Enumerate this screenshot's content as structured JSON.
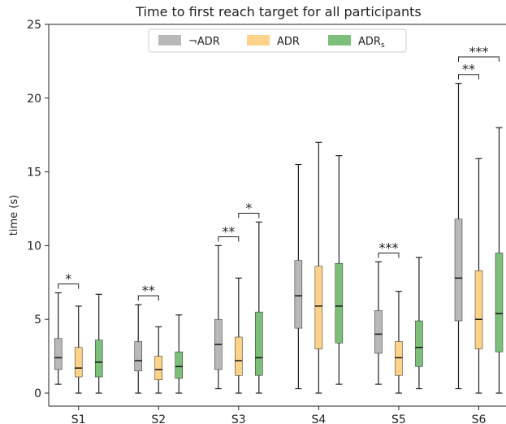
{
  "chart_data": {
    "type": "box",
    "title": "Time to first reach target for all participants",
    "xlabel": "",
    "ylabel": "time (s)",
    "ylim": [
      0,
      25
    ],
    "yticks": [
      0,
      5,
      10,
      15,
      20,
      25
    ],
    "grid": false,
    "legend_position": "top-center",
    "categories": [
      "S1",
      "S2",
      "S3",
      "S4",
      "S5",
      "S6"
    ],
    "series": [
      {
        "name": "¬ADR",
        "color": "#b8b8b8",
        "boxes": [
          {
            "min": 0.6,
            "q1": 1.6,
            "median": 2.4,
            "q3": 3.7,
            "max": 6.8
          },
          {
            "min": 0.0,
            "q1": 1.5,
            "median": 2.2,
            "q3": 3.5,
            "max": 6.0
          },
          {
            "min": 0.3,
            "q1": 1.6,
            "median": 3.3,
            "q3": 5.0,
            "max": 10.0
          },
          {
            "min": 0.3,
            "q1": 4.4,
            "median": 6.6,
            "q3": 9.0,
            "max": 15.5
          },
          {
            "min": 0.6,
            "q1": 2.7,
            "median": 4.0,
            "q3": 5.6,
            "max": 8.9
          },
          {
            "min": 0.3,
            "q1": 4.9,
            "median": 7.8,
            "q3": 11.8,
            "max": 21.0
          }
        ]
      },
      {
        "name": "ADR",
        "color": "#fdd38a",
        "boxes": [
          {
            "min": 0.0,
            "q1": 1.1,
            "median": 1.7,
            "q3": 3.1,
            "max": 5.9
          },
          {
            "min": 0.0,
            "q1": 0.9,
            "median": 1.6,
            "q3": 2.5,
            "max": 4.5
          },
          {
            "min": 0.0,
            "q1": 1.2,
            "median": 2.2,
            "q3": 3.8,
            "max": 7.8
          },
          {
            "min": 0.0,
            "q1": 3.0,
            "median": 5.9,
            "q3": 8.6,
            "max": 17.0
          },
          {
            "min": 0.0,
            "q1": 1.2,
            "median": 2.4,
            "q3": 3.5,
            "max": 6.9
          },
          {
            "min": 0.0,
            "q1": 3.0,
            "median": 5.0,
            "q3": 8.3,
            "max": 15.9
          }
        ]
      },
      {
        "name": "ADR_s",
        "display_name": "ADR",
        "display_subscript": "s",
        "color": "#7cbf7a",
        "boxes": [
          {
            "min": 0.0,
            "q1": 1.1,
            "median": 2.1,
            "q3": 3.6,
            "max": 6.7
          },
          {
            "min": 0.0,
            "q1": 1.0,
            "median": 1.8,
            "q3": 2.8,
            "max": 5.3
          },
          {
            "min": 0.0,
            "q1": 1.2,
            "median": 2.4,
            "q3": 5.5,
            "max": 11.6
          },
          {
            "min": 0.6,
            "q1": 3.4,
            "median": 5.9,
            "q3": 8.8,
            "max": 16.1
          },
          {
            "min": 0.3,
            "q1": 1.8,
            "median": 3.1,
            "q3": 4.9,
            "max": 9.2
          },
          {
            "min": 0.0,
            "q1": 2.8,
            "median": 5.4,
            "q3": 9.5,
            "max": 18.0
          }
        ]
      }
    ],
    "annotations": [
      {
        "category": "S1",
        "from": 0,
        "to": 1,
        "label": "*",
        "y": 7.4,
        "tier": 1
      },
      {
        "category": "S2",
        "from": 0,
        "to": 1,
        "label": "**",
        "y": 6.6,
        "tier": 1
      },
      {
        "category": "S3",
        "from": 0,
        "to": 1,
        "label": "**",
        "y": 10.6,
        "tier": 1
      },
      {
        "category": "S3",
        "from": 1,
        "to": 2,
        "label": "*",
        "y": 12.2,
        "tier": 1
      },
      {
        "category": "S5",
        "from": 0,
        "to": 1,
        "label": "***",
        "y": 9.5,
        "tier": 1
      },
      {
        "category": "S6",
        "from": 0,
        "to": 1,
        "label": "**",
        "y": 21.6,
        "tier": 1
      },
      {
        "category": "S6",
        "from": 0,
        "to": 2,
        "label": "***",
        "y": 22.8,
        "tier": 2
      }
    ]
  }
}
